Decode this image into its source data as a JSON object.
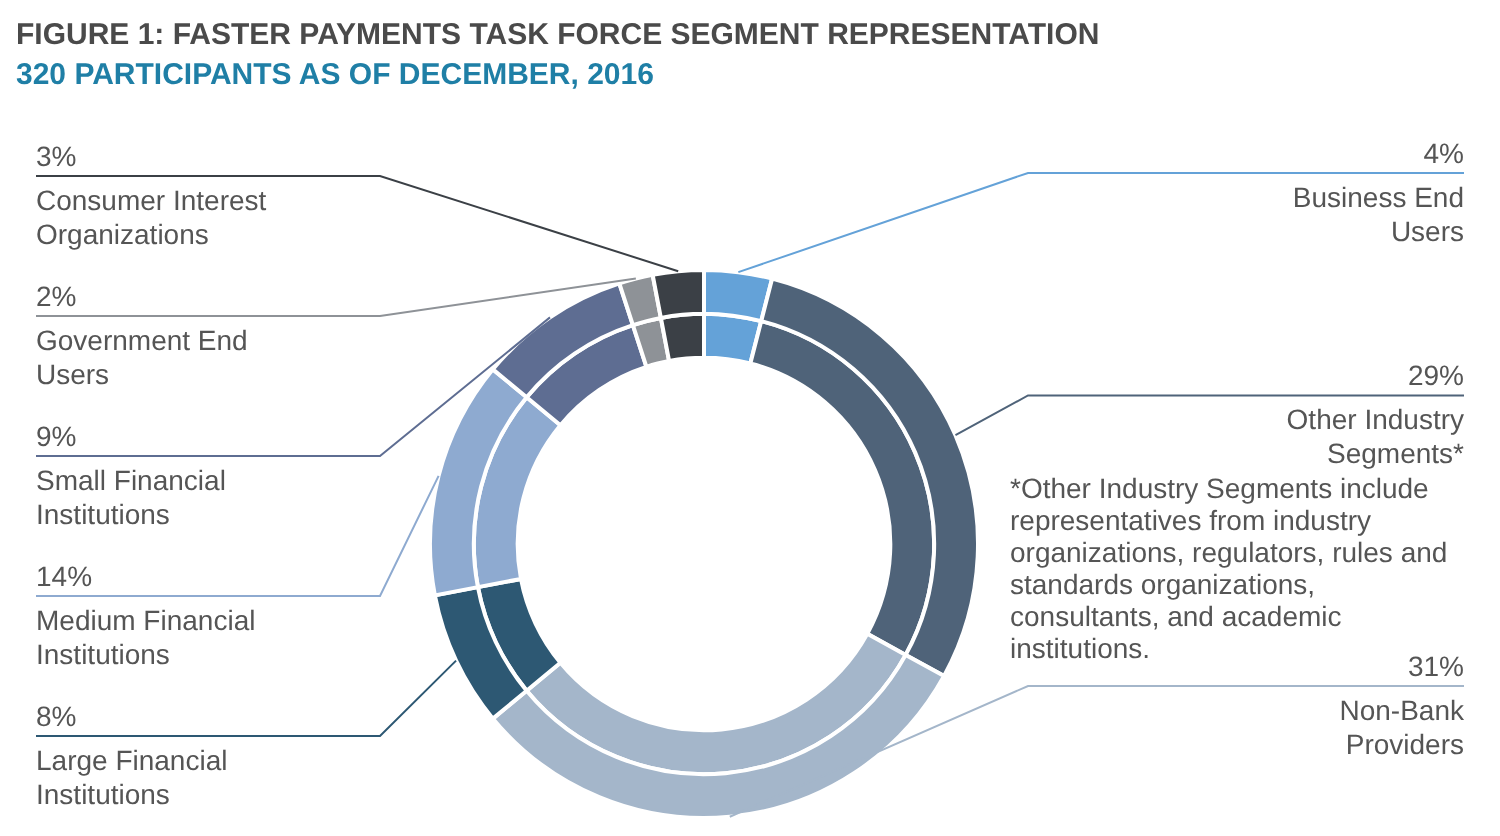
{
  "chart_data": {
    "type": "donut",
    "title": "FIGURE 1: FASTER PAYMENTS TASK FORCE SEGMENT REPRESENTATION",
    "subtitle": "320 PARTICIPANTS AS OF DECEMBER, 2016",
    "categories": [
      "Business End Users",
      "Other Industry Segments*",
      "Non-Bank Providers",
      "Large Financial Institutions",
      "Medium Financial Institutions",
      "Small Financial Institutions",
      "Government End Users",
      "Consumer Interest Organizations"
    ],
    "series": [
      {
        "values": [
          4,
          29,
          31,
          8,
          14,
          9,
          2,
          3
        ]
      },
      {
        "values": [
          4,
          29,
          31,
          8,
          14,
          9,
          2,
          3
        ]
      }
    ],
    "value_labels": [
      "4%",
      "29%",
      "31%",
      "8%",
      "14%",
      "9%",
      "2%",
      "3%"
    ],
    "colors": [
      "#64a2d8",
      "#4f6379",
      "#a4b6ca",
      "#2d5873",
      "#8eaad0",
      "#5e6d92",
      "#8e9297",
      "#3b4046"
    ],
    "legend": false,
    "annotations": [
      "*Other Industry Segments include representatives from industry organizations, regulators, rules and standards organizations, consultants, and academic institutions."
    ]
  }
}
